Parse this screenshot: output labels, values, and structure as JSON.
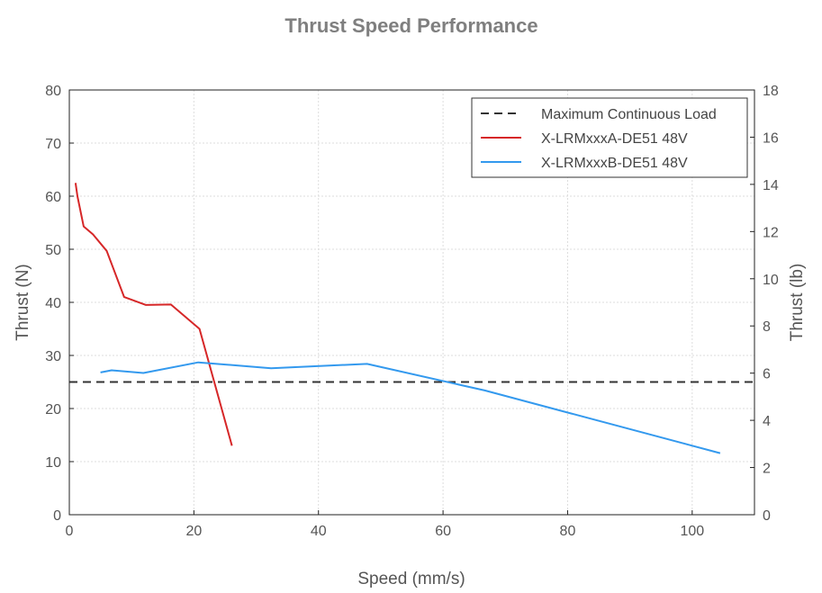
{
  "chart_data": {
    "type": "line",
    "title": "Thrust Speed Performance",
    "xlabel": "Speed (mm/s)",
    "ylabel": "Thrust (N)",
    "ylabel_right": "Thrust (lb)",
    "xlim": [
      0,
      110
    ],
    "ylim": [
      0,
      80
    ],
    "ylim_right": [
      0,
      18
    ],
    "xticks": [
      "0",
      "20",
      "40",
      "60",
      "80",
      "100"
    ],
    "yticks": [
      "0",
      "10",
      "20",
      "30",
      "40",
      "50",
      "60",
      "70",
      "80"
    ],
    "yticks_right": [
      "0",
      "2",
      "4",
      "6",
      "8",
      "10",
      "12",
      "14",
      "16",
      "18"
    ],
    "grid": true,
    "legend_position": "top-right",
    "series": [
      {
        "name": "Maximum Continuous Load",
        "style": "dashed",
        "color": "#333333",
        "x": [
          0,
          110
        ],
        "y": [
          25,
          25
        ]
      },
      {
        "name": "X-LRMxxxA-DE51 48V",
        "style": "solid",
        "color": "#d62728",
        "x": [
          1.0,
          1.3,
          2.3,
          3.8,
          6.0,
          8.8,
          12.3,
          16.3,
          20.9,
          26.1
        ],
        "y": [
          62.5,
          60.0,
          54.3,
          52.8,
          49.7,
          41.0,
          39.5,
          39.6,
          35.0,
          13.0
        ]
      },
      {
        "name": "X-LRMxxxB-DE51 48V",
        "style": "solid",
        "color": "#3399ee",
        "x": [
          5.0,
          6.8,
          11.9,
          20.7,
          32.4,
          47.8,
          66.7,
          104.5
        ],
        "y": [
          26.8,
          27.2,
          26.7,
          28.7,
          27.6,
          28.4,
          23.4,
          11.6
        ]
      }
    ]
  }
}
